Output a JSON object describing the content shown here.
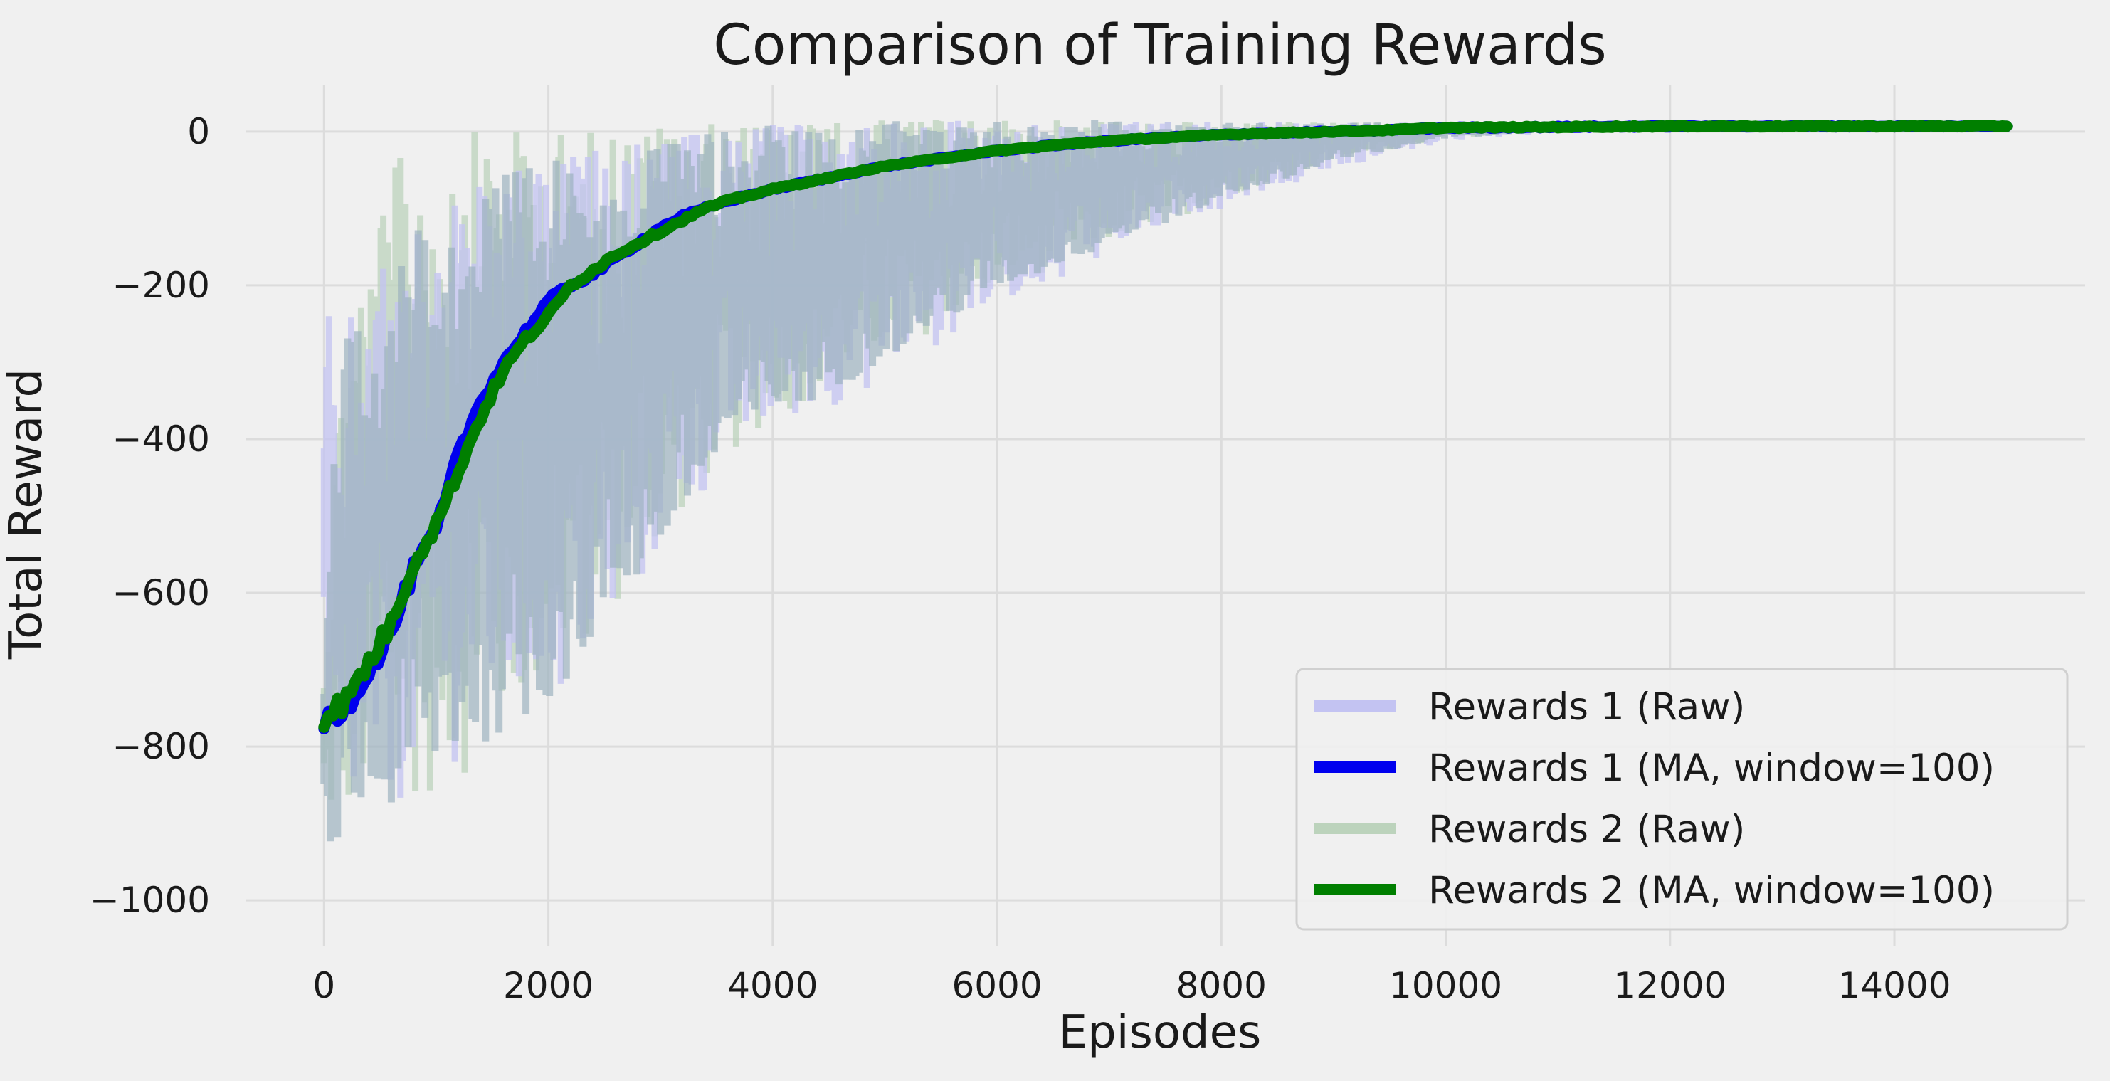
{
  "chart_data": {
    "type": "line",
    "title": "Comparison of Training Rewards",
    "xlabel": "Episodes",
    "ylabel": "Total Reward",
    "xlim": [
      -700,
      15700
    ],
    "ylim": [
      -1060,
      60
    ],
    "xticks": [
      0,
      2000,
      4000,
      6000,
      8000,
      10000,
      12000,
      14000
    ],
    "xtick_labels": [
      "0",
      "2000",
      "4000",
      "6000",
      "8000",
      "10000",
      "12000",
      "14000"
    ],
    "yticks": [
      0,
      -200,
      -400,
      -600,
      -800,
      -1000
    ],
    "ytick_labels": [
      "0",
      "−200",
      "−400",
      "−600",
      "−800",
      "−1000"
    ],
    "grid": true,
    "legend_position": "lower-right",
    "series": [
      {
        "name": "Rewards 1 (Raw)",
        "color": "#c3c3f2",
        "style": "raw-band",
        "x": [
          0,
          100,
          200,
          400,
          600,
          800,
          1000,
          1200,
          1500,
          2000,
          2500,
          3000,
          3500,
          4000,
          5000,
          6000,
          7000,
          8000,
          9000,
          10000,
          11000,
          12000,
          13000,
          14000,
          15000
        ],
        "upper": [
          -130,
          -380,
          -250,
          -200,
          -160,
          -120,
          -110,
          -90,
          -60,
          -40,
          -20,
          -10,
          0,
          10,
          15,
          15,
          15,
          12,
          12,
          12,
          12,
          12,
          12,
          12,
          12
        ],
        "lower": [
          -1010,
          -950,
          -920,
          -900,
          -890,
          -870,
          -850,
          -820,
          -790,
          -760,
          -720,
          -560,
          -460,
          -400,
          -330,
          -230,
          -160,
          -100,
          -50,
          -15,
          0,
          0,
          0,
          0,
          0
        ]
      },
      {
        "name": "Rewards 1 (MA, window=100)",
        "color": "#0000ee",
        "style": "ma",
        "x": [
          0,
          200,
          400,
          600,
          800,
          1000,
          1200,
          1400,
          1600,
          1800,
          2000,
          2200,
          2400,
          2600,
          2800,
          3000,
          3200,
          3400,
          3600,
          4000,
          4500,
          5000,
          5500,
          6000,
          6500,
          7000,
          7500,
          8000,
          8500,
          9000,
          9500,
          10000,
          11000,
          12000,
          13000,
          14000,
          15000
        ],
        "y": [
          -770,
          -745,
          -700,
          -650,
          -570,
          -520,
          -420,
          -350,
          -300,
          -260,
          -220,
          -200,
          -185,
          -165,
          -145,
          -125,
          -110,
          -100,
          -90,
          -75,
          -60,
          -45,
          -35,
          -25,
          -18,
          -12,
          -8,
          -4,
          -2,
          0,
          2,
          5,
          6,
          7,
          7,
          7,
          7
        ]
      },
      {
        "name": "Rewards 2 (Raw)",
        "color": "#bcd3bc",
        "style": "raw-band",
        "x": [
          0,
          100,
          200,
          400,
          600,
          800,
          1000,
          1200,
          1500,
          2000,
          2500,
          3000,
          3500,
          4000,
          5000,
          6000,
          7000,
          8000,
          9000,
          10000,
          11000,
          12000,
          13000,
          14000,
          15000
        ],
        "upper": [
          -700,
          -400,
          -250,
          -150,
          -50,
          -10,
          -10,
          0,
          0,
          0,
          5,
          10,
          10,
          12,
          15,
          15,
          15,
          12,
          12,
          12,
          12,
          12,
          12,
          12,
          12
        ],
        "lower": [
          -900,
          -940,
          -930,
          -910,
          -890,
          -880,
          -870,
          -850,
          -820,
          -750,
          -650,
          -550,
          -450,
          -380,
          -300,
          -210,
          -150,
          -90,
          -40,
          -10,
          0,
          0,
          0,
          0,
          0
        ]
      },
      {
        "name": "Rewards 2 (MA, window=100)",
        "color": "#007f00",
        "style": "ma",
        "x": [
          0,
          200,
          400,
          600,
          800,
          1000,
          1200,
          1400,
          1600,
          1800,
          2000,
          2200,
          2400,
          2600,
          2800,
          3000,
          3200,
          3400,
          3600,
          4000,
          4500,
          5000,
          5500,
          6000,
          6500,
          7000,
          7500,
          8000,
          8500,
          9000,
          9500,
          10000,
          11000,
          12000,
          13000,
          14000,
          15000
        ],
        "y": [
          -760,
          -740,
          -690,
          -640,
          -560,
          -510,
          -440,
          -370,
          -310,
          -270,
          -240,
          -200,
          -180,
          -160,
          -145,
          -130,
          -115,
          -100,
          -90,
          -75,
          -60,
          -45,
          -35,
          -25,
          -18,
          -12,
          -8,
          -4,
          -2,
          0,
          2,
          5,
          6,
          7,
          7,
          7,
          7
        ]
      }
    ]
  }
}
